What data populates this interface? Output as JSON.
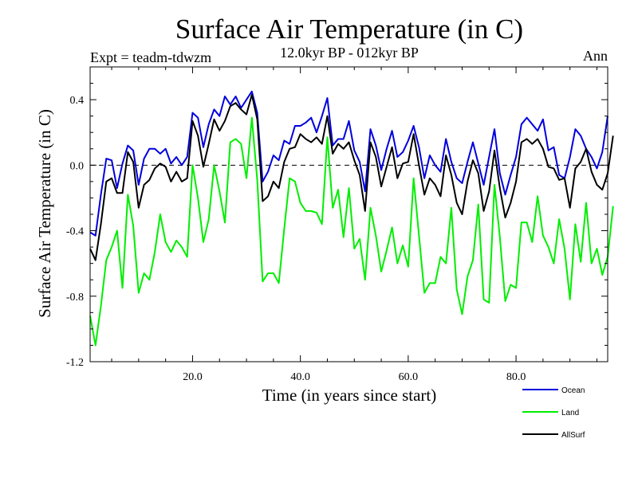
{
  "chart_data": {
    "type": "line",
    "title": "Surface Air Temperature (in C)",
    "subtitle": "12.0kyr BP - 012kyr BP",
    "expt_label": "Expt = teadm-tdwzm",
    "period_label": "Ann",
    "xlabel": "Time (in years since start)",
    "ylabel": "Surface Air Temperature (in C)",
    "xlim": [
      1,
      97
    ],
    "ylim": [
      -1.2,
      0.6
    ],
    "xticks": [
      20,
      40,
      60,
      80
    ],
    "xtick_labels": [
      "20.0",
      "40.0",
      "60.0",
      "80.0"
    ],
    "yticks": [
      -1.2,
      -0.8,
      -0.4,
      0.0,
      0.4
    ],
    "ytick_labels": [
      "-1.2",
      "-0.8",
      "-0.4",
      "0.0",
      "0.4"
    ],
    "zero_line": true,
    "x_start": 1,
    "series": [
      {
        "name": "Ocean",
        "color": "#0000dd",
        "values": [
          -0.41,
          -0.43,
          -0.18,
          0.04,
          0.03,
          -0.14,
          0.01,
          0.12,
          0.09,
          -0.12,
          0.04,
          0.1,
          0.1,
          0.07,
          0.1,
          0.01,
          0.05,
          0.0,
          0.05,
          0.32,
          0.29,
          0.11,
          0.25,
          0.34,
          0.3,
          0.42,
          0.37,
          0.42,
          0.35,
          0.4,
          0.45,
          0.32,
          -0.1,
          -0.04,
          0.06,
          0.03,
          0.15,
          0.13,
          0.24,
          0.24,
          0.26,
          0.29,
          0.2,
          0.3,
          0.41,
          0.12,
          0.16,
          0.16,
          0.27,
          0.09,
          0.02,
          -0.16,
          0.22,
          0.12,
          -0.03,
          0.1,
          0.21,
          0.05,
          0.08,
          0.15,
          0.24,
          0.11,
          -0.08,
          0.06,
          0.0,
          -0.04,
          0.16,
          0.02,
          -0.08,
          -0.11,
          0.02,
          0.14,
          0.01,
          -0.12,
          0.05,
          0.22,
          -0.05,
          -0.18,
          -0.06,
          0.05,
          0.25,
          0.29,
          0.25,
          0.21,
          0.28,
          0.09,
          0.11,
          -0.06,
          -0.08,
          0.05,
          0.22,
          0.18,
          0.1,
          0.05,
          -0.02,
          0.08,
          0.3
        ]
      },
      {
        "name": "Land",
        "color": "#00ee00",
        "values": [
          -0.92,
          -1.1,
          -0.86,
          -0.58,
          -0.5,
          -0.4,
          -0.75,
          -0.18,
          -0.37,
          -0.78,
          -0.66,
          -0.7,
          -0.53,
          -0.3,
          -0.47,
          -0.53,
          -0.46,
          -0.5,
          -0.56,
          0.0,
          -0.2,
          -0.47,
          -0.33,
          0.0,
          -0.16,
          -0.35,
          0.14,
          0.16,
          0.13,
          -0.08,
          0.29,
          -0.09,
          -0.71,
          -0.66,
          -0.66,
          -0.72,
          -0.39,
          -0.08,
          -0.1,
          -0.23,
          -0.28,
          -0.28,
          -0.29,
          -0.36,
          0.17,
          -0.26,
          -0.15,
          -0.44,
          -0.14,
          -0.51,
          -0.45,
          -0.7,
          -0.26,
          -0.43,
          -0.65,
          -0.52,
          -0.38,
          -0.6,
          -0.49,
          -0.62,
          -0.08,
          -0.43,
          -0.78,
          -0.72,
          -0.72,
          -0.56,
          -0.6,
          -0.26,
          -0.76,
          -0.91,
          -0.68,
          -0.58,
          -0.24,
          -0.82,
          -0.84,
          -0.12,
          -0.44,
          -0.83,
          -0.73,
          -0.75,
          -0.35,
          -0.35,
          -0.47,
          -0.19,
          -0.43,
          -0.5,
          -0.6,
          -0.33,
          -0.51,
          -0.82,
          -0.36,
          -0.59,
          -0.23,
          -0.6,
          -0.51,
          -0.67,
          -0.56,
          -0.25
        ]
      },
      {
        "name": "AllSurf",
        "color": "#000000",
        "values": [
          -0.51,
          -0.58,
          -0.36,
          -0.1,
          -0.08,
          -0.17,
          -0.17,
          0.08,
          0.02,
          -0.26,
          -0.12,
          -0.09,
          -0.02,
          0.01,
          -0.01,
          -0.1,
          -0.04,
          -0.1,
          -0.08,
          0.27,
          0.18,
          -0.01,
          0.13,
          0.28,
          0.21,
          0.27,
          0.36,
          0.38,
          0.34,
          0.31,
          0.43,
          0.28,
          -0.22,
          -0.19,
          -0.1,
          -0.14,
          0.02,
          0.1,
          0.11,
          0.19,
          0.16,
          0.14,
          0.17,
          0.13,
          0.3,
          0.07,
          0.13,
          0.1,
          0.14,
          0.03,
          -0.06,
          -0.28,
          0.14,
          0.05,
          -0.13,
          -0.01,
          0.11,
          -0.08,
          0.01,
          0.02,
          0.19,
          0.0,
          -0.18,
          -0.08,
          -0.12,
          -0.19,
          0.06,
          -0.06,
          -0.23,
          -0.3,
          -0.1,
          0.03,
          -0.05,
          -0.28,
          -0.16,
          0.09,
          -0.14,
          -0.32,
          -0.23,
          -0.1,
          0.14,
          0.16,
          0.13,
          0.16,
          0.1,
          -0.01,
          -0.02,
          -0.09,
          -0.08,
          -0.26,
          -0.02,
          0.02,
          0.1,
          -0.04,
          -0.12,
          -0.15,
          -0.05,
          0.18
        ]
      }
    ],
    "legend": {
      "position": "bottom-right",
      "entries": [
        "Ocean",
        "Land",
        "AllSurf"
      ]
    }
  }
}
